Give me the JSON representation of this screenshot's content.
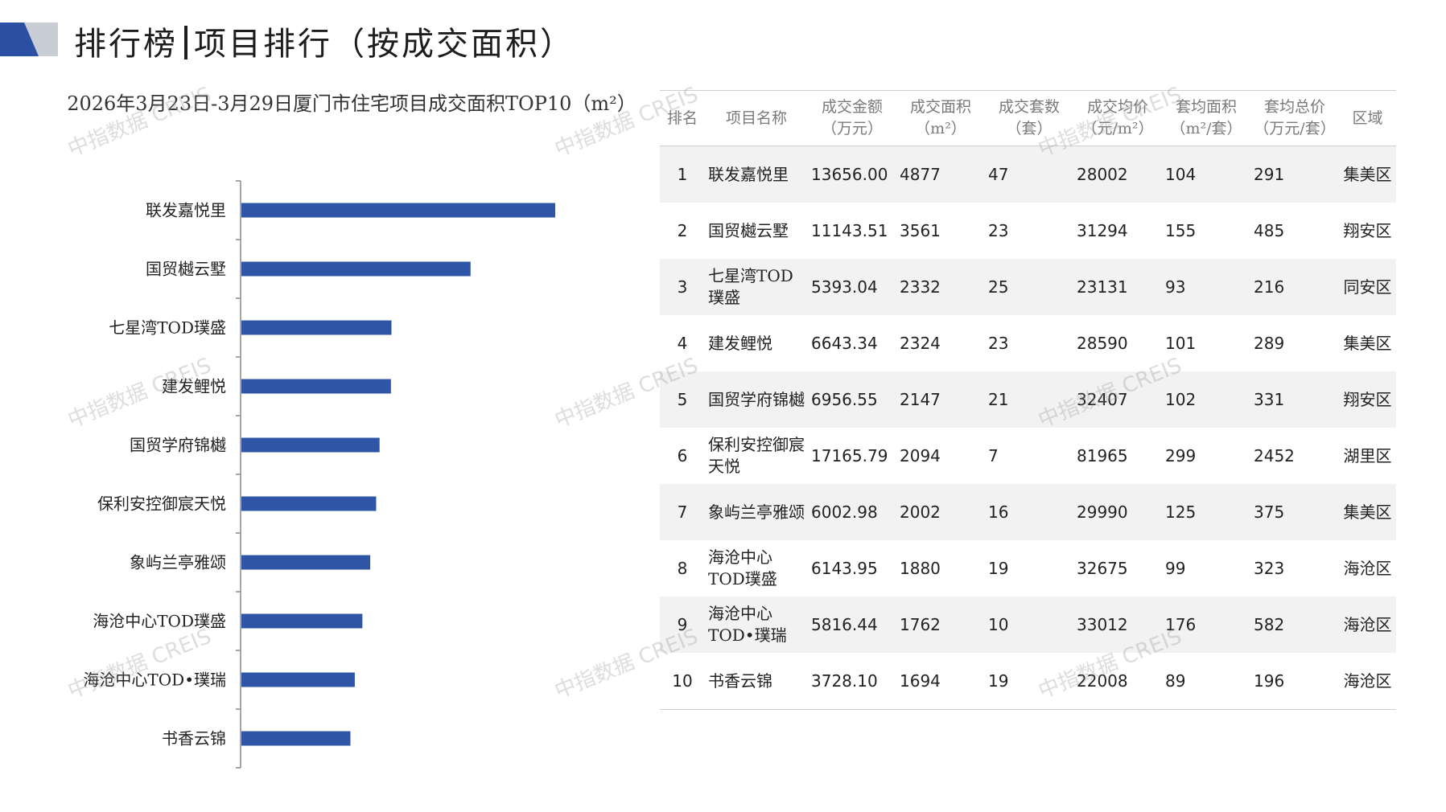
{
  "header": {
    "title_left": "排行榜",
    "title_right": "项目排行（按成交面积）",
    "colors": {
      "mark_dark": "#2b4fa3",
      "mark_light": "#c8cdd6"
    }
  },
  "watermark_text": "中指数据 CREIS",
  "chart_data": {
    "type": "bar",
    "orientation": "horizontal",
    "title": "2026年3月23日-3月29日厦门市住宅项目成交面积TOP10（m²）",
    "categories": [
      "联发嘉悦里",
      "国贸樾云墅",
      "七星湾TOD璞盛",
      "建发鲤悦",
      "国贸学府锦樾",
      "保利安控御宸天悦",
      "象屿兰亭雅颂",
      "海沧中心TOD璞盛",
      "海沧中心TOD•璞瑞",
      "书香云锦"
    ],
    "values": [
      4877,
      3561,
      2332,
      2324,
      2147,
      2094,
      2002,
      1880,
      1762,
      1694
    ],
    "xlim": [
      0,
      7500
    ],
    "bar_color": "#2e55a6",
    "grid": false,
    "legend": "none"
  },
  "table": {
    "headers": [
      "排名",
      "项目名称",
      "成交金额\n（万元）",
      "成交面积\n（m²）",
      "成交套数\n（套）",
      "成交均价\n（元/m²）",
      "套均面积\n（m²/套）",
      "套均总价\n（万元/套）",
      "区域"
    ],
    "rows": [
      [
        "1",
        "联发嘉悦里",
        "13656.00",
        "4877",
        "47",
        "28002",
        "104",
        "291",
        "集美区"
      ],
      [
        "2",
        "国贸樾云墅",
        "11143.51",
        "3561",
        "23",
        "31294",
        "155",
        "485",
        "翔安区"
      ],
      [
        "3",
        "七星湾TOD璞盛",
        "5393.04",
        "2332",
        "25",
        "23131",
        "93",
        "216",
        "同安区"
      ],
      [
        "4",
        "建发鲤悦",
        "6643.34",
        "2324",
        "23",
        "28590",
        "101",
        "289",
        "集美区"
      ],
      [
        "5",
        "国贸学府锦樾",
        "6956.55",
        "2147",
        "21",
        "32407",
        "102",
        "331",
        "翔安区"
      ],
      [
        "6",
        "保利安控御宸天悦",
        "17165.79",
        "2094",
        "7",
        "81965",
        "299",
        "2452",
        "湖里区"
      ],
      [
        "7",
        "象屿兰亭雅颂",
        "6002.98",
        "2002",
        "16",
        "29990",
        "125",
        "375",
        "集美区"
      ],
      [
        "8",
        "海沧中心TOD璞盛",
        "6143.95",
        "1880",
        "19",
        "32675",
        "99",
        "323",
        "海沧区"
      ],
      [
        "9",
        "海沧中心TOD•璞瑞",
        "5816.44",
        "1762",
        "10",
        "33012",
        "176",
        "582",
        "海沧区"
      ],
      [
        "10",
        "书香云锦",
        "3728.10",
        "1694",
        "19",
        "22008",
        "89",
        "196",
        "海沧区"
      ]
    ]
  }
}
